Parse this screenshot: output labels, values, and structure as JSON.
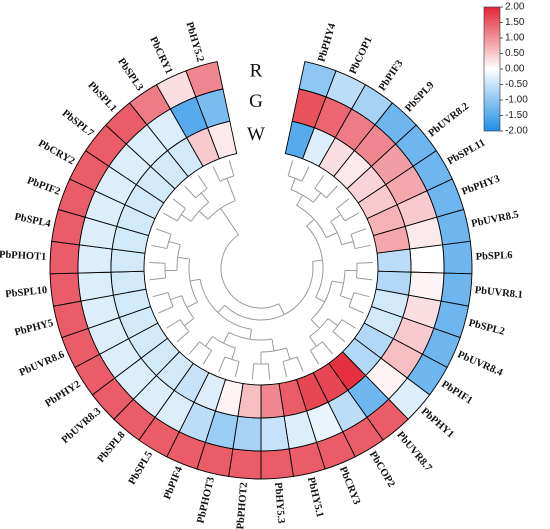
{
  "chart_data": {
    "type": "heatmap",
    "layout": "circular",
    "rings": [
      "R",
      "G",
      "W"
    ],
    "genes": [
      "PbPHY4",
      "PbCOP1",
      "PbPIF3",
      "PbSPL9",
      "PbUVR8.2",
      "PbSPL11",
      "PbPHY3",
      "PbUVR8.5",
      "PbSPL6",
      "PbUVR8.1",
      "PbSPL2",
      "PbUVR8.4",
      "PbPIF1",
      "PbPHY1",
      "PbUVR8.7",
      "PbCOP2",
      "PbCRY3",
      "PbHY5.1",
      "PbHY5.3",
      "PbPHOT2",
      "PbPHOT3",
      "PbPIF4",
      "PbSPL5",
      "PbSPL8",
      "PbUVR8.3",
      "PbPHY2",
      "PbUVR8.6",
      "PbPHY5",
      "PbSPL10",
      "PbPHOT1",
      "PbSPL4",
      "PbPIF2",
      "PbCRY2",
      "PbSPL7",
      "PbSPL1",
      "PbSPL3",
      "PbCRY1",
      "PbHY5.2"
    ],
    "values": {
      "R": [
        -1.0,
        -0.6,
        -0.8,
        -1.3,
        -1.3,
        -1.3,
        -1.3,
        -1.3,
        -1.3,
        -1.3,
        -1.3,
        -1.3,
        -1.3,
        -0.3,
        1.5,
        1.5,
        1.5,
        1.5,
        1.5,
        1.5,
        1.5,
        1.5,
        1.5,
        1.5,
        1.5,
        1.5,
        1.5,
        1.5,
        1.5,
        1.5,
        1.5,
        1.5,
        1.5,
        1.5,
        1.5,
        1.2,
        0.3,
        1.1
      ],
      "G": [
        1.6,
        1.4,
        1.2,
        1.1,
        0.9,
        0.8,
        0.5,
        0.2,
        0.0,
        0.1,
        0.3,
        0.5,
        0.6,
        0.1,
        -1.3,
        -0.6,
        -0.2,
        -0.3,
        -0.5,
        -0.8,
        -0.9,
        -0.6,
        -0.3,
        -0.3,
        -0.3,
        -0.3,
        -0.3,
        -0.3,
        -0.3,
        -0.3,
        -0.3,
        -0.3,
        -0.3,
        -0.3,
        -0.3,
        -0.3,
        -1.5,
        -1.2
      ],
      "W": [
        -1.5,
        -0.3,
        0.3,
        0.2,
        0.4,
        0.5,
        0.7,
        0.8,
        -0.6,
        -0.7,
        -0.4,
        -0.4,
        -0.7,
        -0.7,
        1.9,
        1.7,
        1.7,
        1.5,
        1.1,
        0.6,
        0.1,
        -0.3,
        -0.5,
        -0.4,
        -0.4,
        -0.4,
        -0.4,
        -0.4,
        -0.4,
        -0.4,
        -0.4,
        -0.4,
        -0.4,
        -0.4,
        -0.4,
        -0.4,
        0.5,
        0.2
      ]
    },
    "colorbar": {
      "min": -2.0,
      "max": 2.0,
      "ticks": [
        "2.00",
        "1.50",
        "1.00",
        "0.50",
        "0.00",
        "-0.50",
        "-1.00",
        "-1.50",
        "-2.00"
      ],
      "colors": [
        "#1f8fe6",
        "#ffffff",
        "#e32535"
      ]
    }
  }
}
